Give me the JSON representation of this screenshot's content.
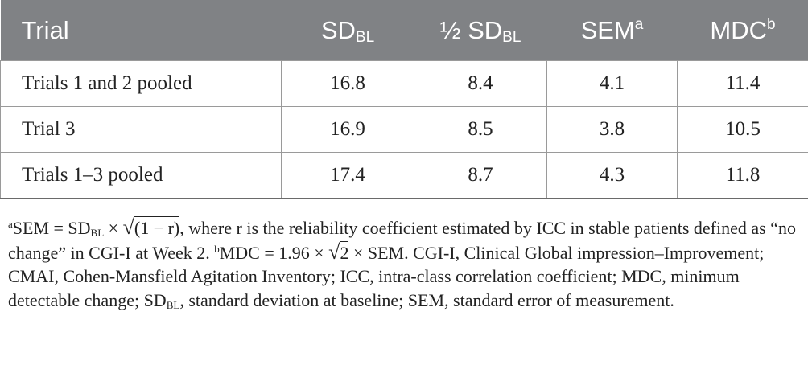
{
  "header": {
    "trial": "Trial",
    "sd_main": "SD",
    "sd_sub": "BL",
    "half_prefix": "½ SD",
    "half_sub": "BL",
    "sem_main": "SEM",
    "sem_sup": "a",
    "mdc_main": "MDC",
    "mdc_sup": "b"
  },
  "rows": [
    {
      "trial": "Trials 1 and 2 pooled",
      "sd": "16.8",
      "half": "8.4",
      "sem": "4.1",
      "mdc": "11.4"
    },
    {
      "trial": "Trial 3",
      "sd": "16.9",
      "half": "8.5",
      "sem": "3.8",
      "mdc": "10.5"
    },
    {
      "trial": "Trials 1–3 pooled",
      "sd": "17.4",
      "half": "8.7",
      "sem": "4.3",
      "mdc": "11.8"
    }
  ],
  "notes": {
    "a_mark": "a",
    "a_lhs": "SEM = SD",
    "a_sub": "BL",
    "a_times": " × ",
    "a_sqrt": "√",
    "a_radicand": "(1 − r)",
    "a_text": ", where r is the reliability coefficient estimated by ICC in stable patients defined as “no change” in CGI-I at Week 2. ",
    "b_mark": "b",
    "b_lhs": "MDC = 1.96 × ",
    "b_sqrt": "√",
    "b_radicand": "2",
    "b_rest": " × SEM. CGI-I, Clinical Global impression–Improvement; CMAI, Cohen-Mansfield Agitation Inventory; ICC, intra-class correlation coefficient; MDC, minimum detectable change; SD",
    "b_sub": "BL",
    "b_end": ", standard deviation at baseline; SEM, standard error of measurement."
  }
}
